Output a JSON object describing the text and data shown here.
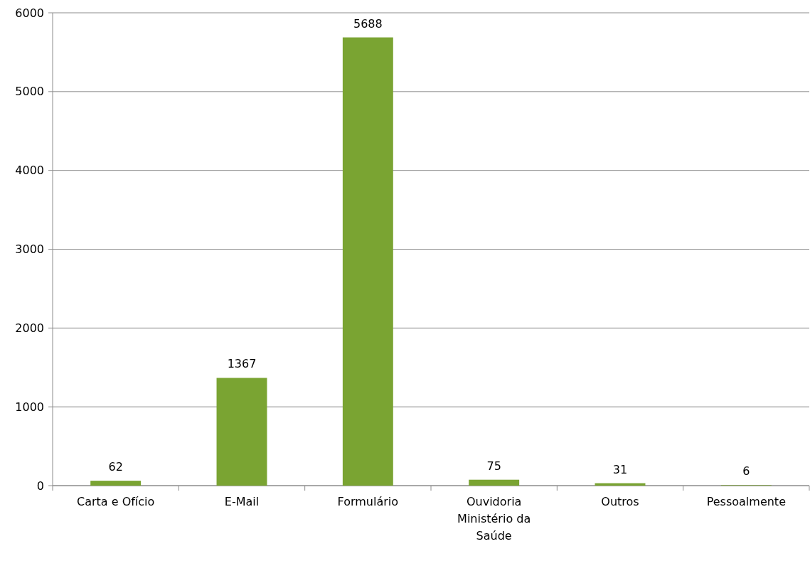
{
  "chart_data": {
    "type": "bar",
    "categories": [
      "Carta e Ofício",
      "E-Mail",
      "Formulário",
      "Ouvidoria Ministério da Saúde",
      "Outros",
      "Pessoalmente"
    ],
    "values": [
      62,
      1367,
      5688,
      75,
      31,
      6
    ],
    "color": "#7aa432",
    "ylim": [
      0,
      6000
    ],
    "yticks": [
      0,
      1000,
      2000,
      3000,
      4000,
      5000,
      6000
    ],
    "grid": "y",
    "data_labels": true
  }
}
